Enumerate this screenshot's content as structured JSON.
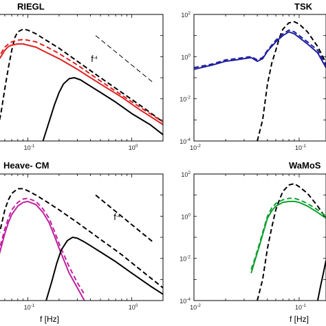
{
  "chart_data": [
    {
      "type": "line",
      "title": "RIEGL",
      "xlabel": "",
      "xscale": "log",
      "yscale": "log",
      "xlim": [
        0.05,
        2
      ],
      "ylim": [
        0.0001,
        100
      ],
      "xticks": [
        {
          "base": "10",
          "exp": "-1",
          "value": 0.1
        },
        {
          "base": "10",
          "exp": "0",
          "value": 1
        }
      ],
      "yticks": [],
      "annotation": {
        "base": "f",
        "exp": "-4"
      },
      "series": [
        {
          "color": "#000000",
          "dash": "dashed",
          "width": 2,
          "x": [
            0.05,
            0.055,
            0.06,
            0.065,
            0.07,
            0.075,
            0.08,
            0.09,
            0.1,
            0.12,
            0.15,
            0.2,
            0.3,
            0.5,
            0.8,
            1.2,
            2
          ],
          "y": [
            0.0002,
            0.002,
            0.03,
            0.3,
            2,
            8,
            15,
            20,
            18,
            12,
            6,
            2.5,
            0.6,
            0.1,
            0.02,
            0.005,
            0.0008
          ]
        },
        {
          "color": "#e02020",
          "dash": "solid",
          "width": 2,
          "x": [
            0.05,
            0.055,
            0.06,
            0.065,
            0.07,
            0.08,
            0.09,
            0.1,
            0.12,
            0.15,
            0.2,
            0.3,
            0.5,
            0.8,
            1.2,
            2
          ],
          "y": [
            0.5,
            1,
            2,
            3,
            3.5,
            4,
            4,
            3.5,
            2.8,
            1.6,
            0.8,
            0.25,
            0.05,
            0.012,
            0.003,
            0.0006
          ]
        },
        {
          "color": "#e02020",
          "dash": "dashed",
          "width": 2,
          "x": [
            0.05,
            0.055,
            0.06,
            0.065,
            0.07,
            0.08,
            0.09,
            0.1,
            0.12,
            0.15,
            0.2,
            0.3,
            0.5,
            0.8,
            1.2,
            2
          ],
          "y": [
            0.7,
            1.4,
            2.8,
            4,
            5,
            6,
            6.5,
            6,
            5,
            3,
            1.4,
            0.4,
            0.07,
            0.015,
            0.004,
            0.0008
          ]
        },
        {
          "color": "#000000",
          "dash": "solid",
          "width": 2,
          "x": [
            0.14,
            0.16,
            0.18,
            0.2,
            0.22,
            0.25,
            0.28,
            0.32,
            0.4,
            0.5,
            0.7,
            1,
            1.5,
            2
          ],
          "y": [
            0.0001,
            0.0008,
            0.005,
            0.02,
            0.05,
            0.09,
            0.1,
            0.08,
            0.04,
            0.02,
            0.007,
            0.002,
            0.0006,
            0.0002
          ]
        },
        {
          "color": "#000000",
          "dash": "dashed",
          "width": 1,
          "x": [
            0.45,
            1.6
          ],
          "y": [
            10,
            0.06
          ]
        }
      ]
    },
    {
      "type": "line",
      "title": "TSK",
      "xlabel": "",
      "xscale": "log",
      "yscale": "log",
      "xlim": [
        0.01,
        0.18
      ],
      "ylim": [
        0.0001,
        100
      ],
      "xticks": [
        {
          "base": "10",
          "exp": "-2",
          "value": 0.01
        },
        {
          "base": "10",
          "exp": "-1",
          "value": 0.1
        }
      ],
      "yticks": [
        {
          "base": "10",
          "exp": "2",
          "value": 100
        },
        {
          "base": "10",
          "exp": "0",
          "value": 1
        },
        {
          "base": "10",
          "exp": "-2",
          "value": 0.01
        },
        {
          "base": "10",
          "exp": "-4",
          "value": 0.0001
        }
      ],
      "series": [
        {
          "color": "#000000",
          "dash": "dashed",
          "width": 2,
          "x": [
            0.04,
            0.045,
            0.05,
            0.055,
            0.06,
            0.065,
            0.07,
            0.08,
            0.09,
            0.1,
            0.12,
            0.15,
            0.18
          ],
          "y": [
            0.0001,
            0.001,
            0.05,
            0.5,
            2,
            8,
            20,
            40,
            45,
            35,
            15,
            3,
            0.5
          ]
        },
        {
          "color": "#2020a0",
          "dash": "solid",
          "width": 2,
          "x": [
            0.01,
            0.015,
            0.02,
            0.025,
            0.03,
            0.035,
            0.04,
            0.045,
            0.05,
            0.06,
            0.07,
            0.08,
            0.09,
            0.1,
            0.12,
            0.15,
            0.18
          ],
          "y": [
            0.25,
            0.4,
            0.6,
            0.7,
            0.8,
            0.9,
            0.6,
            0.8,
            1.8,
            5,
            10,
            15,
            12,
            8,
            4,
            1.5,
            0.3
          ]
        },
        {
          "color": "#2020a0",
          "dash": "dashed",
          "width": 2,
          "x": [
            0.01,
            0.015,
            0.02,
            0.025,
            0.03,
            0.035,
            0.04,
            0.045,
            0.05,
            0.06,
            0.07,
            0.08,
            0.09,
            0.1,
            0.12,
            0.15,
            0.18
          ],
          "y": [
            0.3,
            0.45,
            0.7,
            0.8,
            0.9,
            1,
            0.7,
            0.9,
            2,
            6,
            12,
            18,
            15,
            10,
            5,
            2,
            0.4
          ]
        }
      ]
    },
    {
      "type": "line",
      "title": "Heave- CM",
      "xlabel": "f [Hz]",
      "xscale": "log",
      "yscale": "log",
      "xlim": [
        0.05,
        2
      ],
      "ylim": [
        0.0001,
        100
      ],
      "xticks": [
        {
          "base": "10",
          "exp": "-1",
          "value": 0.1
        },
        {
          "base": "10",
          "exp": "0",
          "value": 1
        }
      ],
      "yticks": [],
      "annotation": {
        "base": "f",
        "exp": "-4"
      },
      "series": [
        {
          "color": "#000000",
          "dash": "dashed",
          "width": 2,
          "x": [
            0.05,
            0.055,
            0.06,
            0.065,
            0.07,
            0.08,
            0.09,
            0.1,
            0.12,
            0.15,
            0.2,
            0.3,
            0.5,
            0.8,
            1.2,
            2
          ],
          "y": [
            0.05,
            0.3,
            2,
            6,
            12,
            20,
            20,
            16,
            10,
            5,
            2,
            0.5,
            0.08,
            0.015,
            0.003,
            0.0004
          ]
        },
        {
          "color": "#c020a0",
          "dash": "solid",
          "width": 2,
          "x": [
            0.05,
            0.055,
            0.06,
            0.065,
            0.07,
            0.08,
            0.09,
            0.1,
            0.12,
            0.14,
            0.16,
            0.18,
            0.2,
            0.25,
            0.3,
            0.35
          ],
          "y": [
            0.005,
            0.03,
            0.15,
            0.5,
            1.2,
            3,
            4.5,
            5,
            3.5,
            1.5,
            0.5,
            0.12,
            0.03,
            0.002,
            0.0004,
            0.0001
          ]
        },
        {
          "color": "#c020a0",
          "dash": "dashed",
          "width": 2,
          "x": [
            0.05,
            0.055,
            0.06,
            0.065,
            0.07,
            0.08,
            0.09,
            0.1,
            0.12,
            0.14,
            0.16,
            0.18,
            0.2,
            0.25,
            0.3,
            0.35
          ],
          "y": [
            0.008,
            0.05,
            0.25,
            0.8,
            2,
            4.5,
            6.5,
            7,
            5,
            2.2,
            0.8,
            0.2,
            0.05,
            0.004,
            0.0007,
            0.0002
          ]
        },
        {
          "color": "#000000",
          "dash": "solid",
          "width": 2,
          "x": [
            0.15,
            0.17,
            0.19,
            0.21,
            0.24,
            0.27,
            0.3,
            0.35,
            0.4,
            0.5,
            0.7,
            1,
            1.5,
            2
          ],
          "y": [
            0.0001,
            0.0008,
            0.006,
            0.025,
            0.07,
            0.1,
            0.09,
            0.06,
            0.04,
            0.02,
            0.007,
            0.002,
            0.0005,
            0.0002
          ]
        },
        {
          "color": "#000000",
          "dash": "dashed",
          "width": 2,
          "x": [
            0.45,
            1.6
          ],
          "y": [
            10,
            0.06
          ]
        }
      ]
    },
    {
      "type": "line",
      "title": "WaMoS",
      "xlabel": "f [Hz]",
      "xscale": "log",
      "yscale": "log",
      "xlim": [
        0.01,
        0.18
      ],
      "ylim": [
        0.0001,
        100
      ],
      "xticks": [
        {
          "base": "10",
          "exp": "-2",
          "value": 0.01
        },
        {
          "base": "10",
          "exp": "-1",
          "value": 0.1
        }
      ],
      "yticks": [
        {
          "base": "10",
          "exp": "2",
          "value": 100
        },
        {
          "base": "10",
          "exp": "0",
          "value": 1
        },
        {
          "base": "10",
          "exp": "-2",
          "value": 0.01
        },
        {
          "base": "10",
          "exp": "-4",
          "value": 0.0001
        }
      ],
      "series": [
        {
          "color": "#000000",
          "dash": "dashed",
          "width": 2,
          "x": [
            0.04,
            0.045,
            0.05,
            0.055,
            0.06,
            0.065,
            0.07,
            0.08,
            0.09,
            0.1,
            0.12,
            0.15,
            0.18
          ],
          "y": [
            0.0001,
            0.001,
            0.03,
            0.3,
            2,
            6,
            15,
            30,
            35,
            25,
            12,
            3,
            0.8
          ]
        },
        {
          "color": "#10a030",
          "dash": "solid",
          "width": 2,
          "x": [
            0.035,
            0.038,
            0.042,
            0.046,
            0.05,
            0.055,
            0.06,
            0.07,
            0.08,
            0.09,
            0.1,
            0.12,
            0.15,
            0.18
          ],
          "y": [
            0.002,
            0.008,
            0.04,
            0.2,
            0.8,
            1.8,
            3,
            4.5,
            5,
            5,
            4.5,
            3,
            1.5,
            0.8
          ]
        },
        {
          "color": "#10a030",
          "dash": "dashed",
          "width": 2,
          "x": [
            0.035,
            0.038,
            0.042,
            0.046,
            0.05,
            0.055,
            0.06,
            0.07,
            0.08,
            0.09,
            0.1,
            0.12,
            0.15,
            0.18
          ],
          "y": [
            0.003,
            0.01,
            0.05,
            0.25,
            1,
            2.5,
            4,
            6,
            7,
            7,
            6,
            4,
            2,
            1
          ]
        },
        {
          "color": "#000000",
          "dash": "solid",
          "width": 2,
          "x": [
            0.15,
            0.16,
            0.17,
            0.18
          ],
          "y": [
            0.0001,
            0.0005,
            0.002,
            0.008
          ]
        }
      ]
    }
  ]
}
